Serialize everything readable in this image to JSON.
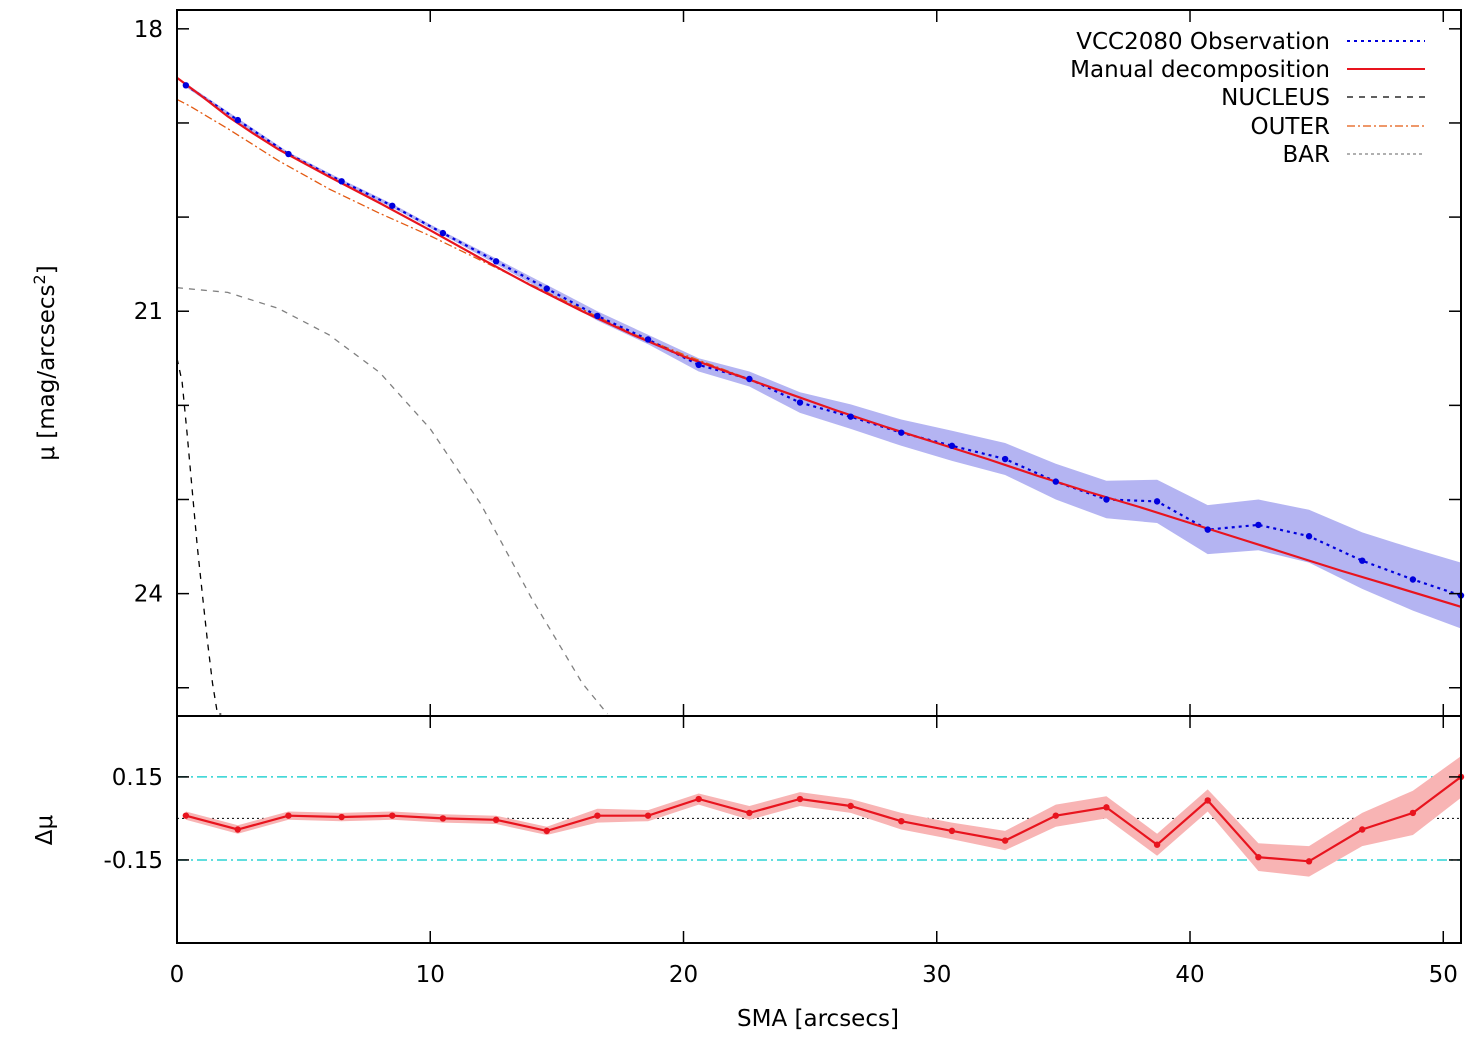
{
  "chart_data": [
    {
      "panel": "profile",
      "type": "line",
      "ylabel": "μ [mag/arcsecs2]",
      "ylabel_main": "μ [mag/arcsecs",
      "ylabel_sup": "2",
      "ylabel_close": "]",
      "xlim": [
        0,
        50.7
      ],
      "ylim": [
        25.3,
        17.8
      ],
      "y_inverted": true,
      "yticks": [
        18,
        21,
        24
      ],
      "ytick_labels": [
        "18",
        "21",
        "24"
      ],
      "minor_yticks": [
        19,
        20,
        22,
        23,
        25
      ],
      "xticks": [
        0,
        10,
        20,
        30,
        40,
        50
      ],
      "grid": false,
      "legend_position": "top-right",
      "series": [
        {
          "name": "VCC2080 Observation",
          "style": "dotted",
          "color": "#0000dd",
          "band_color": "#b4b4f2",
          "x": [
            0.35,
            2.4,
            4.4,
            6.5,
            8.5,
            10.5,
            12.6,
            14.6,
            16.6,
            18.6,
            20.6,
            22.6,
            24.6,
            26.6,
            28.6,
            30.6,
            32.7,
            34.7,
            36.7,
            38.7,
            40.7,
            42.7,
            44.7,
            46.8,
            48.8,
            50.7
          ],
          "y": [
            18.6,
            18.97,
            19.33,
            19.62,
            19.88,
            20.17,
            20.47,
            20.76,
            21.05,
            21.3,
            21.57,
            21.72,
            21.97,
            22.12,
            22.29,
            22.43,
            22.57,
            22.81,
            23.0,
            23.02,
            23.32,
            23.27,
            23.39,
            23.65,
            23.85,
            24.02
          ],
          "band_low": [
            18.58,
            18.95,
            19.31,
            19.6,
            19.86,
            20.15,
            20.44,
            20.72,
            21.0,
            21.25,
            21.5,
            21.64,
            21.86,
            21.99,
            22.15,
            22.27,
            22.4,
            22.62,
            22.8,
            22.79,
            23.06,
            23.0,
            23.11,
            23.35,
            23.52,
            23.67
          ],
          "band_high": [
            18.62,
            18.99,
            19.35,
            19.64,
            19.9,
            20.19,
            20.5,
            20.8,
            21.1,
            21.35,
            21.64,
            21.8,
            22.08,
            22.25,
            22.43,
            22.59,
            22.74,
            23.0,
            23.2,
            23.25,
            23.58,
            23.54,
            23.67,
            23.95,
            24.18,
            24.37
          ]
        },
        {
          "name": "Manual decomposition",
          "style": "solid",
          "color": "#e8141e",
          "x": [
            0,
            1,
            2,
            3,
            4,
            6,
            8,
            10,
            12,
            14,
            16,
            18,
            20,
            22,
            24,
            26,
            28,
            30,
            32,
            34,
            36,
            38,
            40,
            42,
            44,
            46,
            48,
            50.7
          ],
          "y": [
            18.52,
            18.72,
            18.93,
            19.11,
            19.28,
            19.57,
            19.85,
            20.14,
            20.44,
            20.73,
            21.0,
            21.25,
            21.48,
            21.67,
            21.86,
            22.05,
            22.23,
            22.4,
            22.57,
            22.75,
            22.92,
            23.08,
            23.25,
            23.42,
            23.59,
            23.76,
            23.92,
            24.14
          ]
        },
        {
          "name": "NUCLEUS",
          "style": "dashed",
          "color": "#000000",
          "x": [
            0,
            0.2,
            0.4,
            0.6,
            0.8,
            1.0,
            1.2,
            1.4,
            1.6,
            1.75
          ],
          "y": [
            21.5,
            21.75,
            22.3,
            22.9,
            23.5,
            24.0,
            24.5,
            24.95,
            25.3,
            25.3
          ]
        },
        {
          "name": "OUTER",
          "style": "dash-dot",
          "color": "#e35a12",
          "x": [
            0,
            0.5,
            1,
            2,
            4,
            6,
            8,
            10,
            12,
            14,
            16,
            18,
            20,
            22,
            24,
            26,
            28,
            30,
            32,
            34,
            36,
            38,
            40,
            42,
            44,
            46,
            48,
            50.7
          ],
          "y": [
            18.75,
            18.82,
            18.9,
            19.06,
            19.4,
            19.7,
            19.96,
            20.2,
            20.46,
            20.72,
            20.98,
            21.24,
            21.46,
            21.66,
            21.86,
            22.05,
            22.23,
            22.4,
            22.57,
            22.75,
            22.92,
            23.08,
            23.25,
            23.42,
            23.59,
            23.76,
            23.92,
            24.14
          ]
        },
        {
          "name": "BAR",
          "style": "dashed",
          "color": "#808080",
          "x": [
            0,
            2,
            4,
            6,
            8,
            10,
            12,
            14,
            16,
            17
          ],
          "y": [
            20.75,
            20.8,
            20.97,
            21.25,
            21.65,
            22.25,
            23.05,
            24.05,
            24.95,
            25.3
          ]
        }
      ]
    },
    {
      "panel": "residual",
      "type": "line",
      "xlabel": "SMA [arcsecs]",
      "ylabel": "Δμ",
      "xlim": [
        0,
        50.7
      ],
      "ylim": [
        -0.45,
        0.37
      ],
      "yticks": [
        0.15,
        -0.15
      ],
      "ytick_labels": [
        "0.15",
        "-0.15"
      ],
      "xticks": [
        0,
        10,
        20,
        30,
        40,
        50
      ],
      "xtick_labels": [
        "0",
        "10",
        "20",
        "30",
        "40",
        "50"
      ],
      "reference_lines": [
        {
          "y": 0.15,
          "style": "dash-dot",
          "color": "#2cd3d3"
        },
        {
          "y": -0.15,
          "style": "dash-dot",
          "color": "#2cd3d3"
        },
        {
          "y": 0,
          "style": "dotted",
          "color": "#000000"
        }
      ],
      "series": [
        {
          "style": "solid",
          "color": "#e8141e",
          "band_color": "#f8b4b4",
          "x": [
            0.35,
            2.4,
            4.4,
            6.5,
            8.5,
            10.5,
            12.6,
            14.6,
            16.6,
            18.6,
            20.6,
            22.6,
            24.6,
            26.6,
            28.6,
            30.6,
            32.7,
            34.7,
            36.7,
            38.7,
            40.7,
            42.7,
            44.7,
            46.8,
            48.8,
            50.7
          ],
          "y": [
            0.01,
            -0.04,
            0.01,
            0.005,
            0.01,
            0.0,
            -0.005,
            -0.045,
            0.01,
            0.01,
            0.07,
            0.02,
            0.07,
            0.045,
            -0.01,
            -0.045,
            -0.08,
            0.01,
            0.04,
            -0.095,
            0.065,
            -0.14,
            -0.155,
            -0.04,
            0.02,
            0.15
          ],
          "band_low": [
            -0.005,
            -0.055,
            -0.005,
            -0.01,
            -0.005,
            -0.015,
            -0.02,
            -0.06,
            -0.015,
            -0.01,
            0.05,
            -0.005,
            0.045,
            0.02,
            -0.04,
            -0.075,
            -0.115,
            -0.03,
            0.0,
            -0.135,
            0.025,
            -0.19,
            -0.21,
            -0.1,
            -0.06,
            0.075
          ],
          "band_high": [
            0.025,
            -0.025,
            0.025,
            0.02,
            0.025,
            0.015,
            0.01,
            -0.03,
            0.035,
            0.03,
            0.09,
            0.045,
            0.095,
            0.07,
            0.02,
            -0.015,
            -0.045,
            0.05,
            0.08,
            -0.055,
            0.105,
            -0.09,
            -0.1,
            0.02,
            0.1,
            0.225
          ]
        }
      ]
    }
  ]
}
